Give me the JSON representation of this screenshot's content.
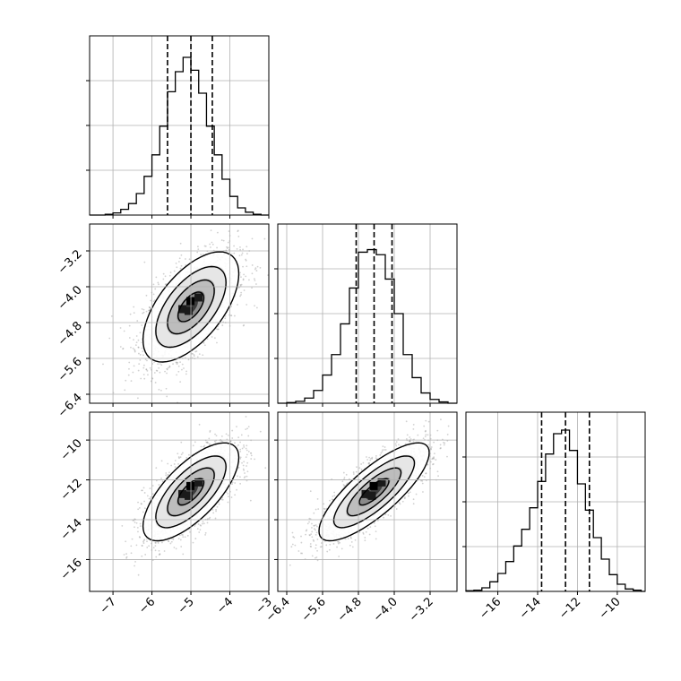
{
  "chart_data": {
    "type": "corner",
    "grid": true,
    "colors": {
      "line": "#000000",
      "grid": "#b0b0b0",
      "scatter": "#9a9a9a"
    },
    "parameters": [
      {
        "range": [
          -7.6,
          -3.0
        ],
        "ticks": [
          -7,
          -6,
          -5,
          -4,
          -3
        ],
        "tick_labels": [
          "−7",
          "−6",
          "−5",
          "−4",
          "−3"
        ],
        "quantiles": [
          -5.6,
          -5.0,
          -4.45
        ]
      },
      {
        "range": [
          -6.6,
          -2.6
        ],
        "ticks": [
          -6.4,
          -5.6,
          -4.8,
          -4.0,
          -3.2
        ],
        "tick_labels": [
          "−6.4",
          "−5.6",
          "−4.8",
          "−4.0",
          "−3.2"
        ],
        "quantiles": [
          -4.85,
          -4.45,
          -4.05
        ]
      },
      {
        "range": [
          -17.6,
          -8.6
        ],
        "ticks": [
          -16,
          -14,
          -12,
          -10
        ],
        "tick_labels": [
          "−16",
          "−14",
          "−12",
          "−10"
        ],
        "quantiles": [
          -13.8,
          -12.6,
          -11.4
        ]
      }
    ],
    "histograms": [
      {
        "param": 0,
        "bin_edges": [
          -7.6,
          -7.4,
          -7.2,
          -7.0,
          -6.8,
          -6.6,
          -6.4,
          -6.2,
          -6.0,
          -5.8,
          -5.6,
          -5.4,
          -5.2,
          -5.0,
          -4.8,
          -4.6,
          -4.4,
          -4.2,
          -4.0,
          -3.8,
          -3.6,
          -3.4,
          -3.2,
          -3.0
        ],
        "counts": [
          0,
          0,
          0.5,
          1.5,
          4,
          8,
          15,
          27,
          42,
          62,
          86,
          100,
          110,
          101,
          85,
          62,
          42,
          25,
          13,
          5,
          2,
          0.5,
          0
        ],
        "ylim": [
          0,
          125
        ]
      },
      {
        "param": 1,
        "bin_edges": [
          -6.6,
          -6.4,
          -6.2,
          -6.0,
          -5.8,
          -5.6,
          -5.4,
          -5.2,
          -5.0,
          -4.8,
          -4.6,
          -4.4,
          -4.2,
          -4.0,
          -3.8,
          -3.6,
          -3.4,
          -3.2,
          -3.0,
          -2.8,
          -2.6
        ],
        "counts": [
          0,
          0.5,
          1.5,
          4,
          10,
          22,
          38,
          62,
          90,
          118,
          120,
          116,
          97,
          70,
          38,
          20,
          8,
          3,
          1,
          0
        ],
        "ylim": [
          0,
          140
        ]
      },
      {
        "param": 2,
        "bin_edges": [
          -17.6,
          -17.2,
          -16.8,
          -16.4,
          -16.0,
          -15.6,
          -15.2,
          -14.8,
          -14.4,
          -14.0,
          -13.6,
          -13.2,
          -12.8,
          -12.4,
          -12.0,
          -11.6,
          -11.2,
          -10.8,
          -10.4,
          -10.0,
          -9.6,
          -9.2,
          -8.8,
          -8.6
        ],
        "counts": [
          0.5,
          1,
          3,
          8,
          15,
          25,
          38,
          52,
          70,
          92,
          115,
          132,
          135,
          118,
          90,
          68,
          45,
          27,
          14,
          6,
          2,
          1,
          0
        ],
        "ylim": [
          0,
          150
        ]
      }
    ],
    "density_panels": [
      {
        "x_param": 0,
        "y_param": 1,
        "center": [
          -5.0,
          -4.45
        ],
        "sigma": [
          0.6,
          0.6
        ],
        "rho": 0.6
      },
      {
        "x_param": 0,
        "y_param": 2,
        "center": [
          -5.0,
          -12.6
        ],
        "sigma": [
          0.6,
          1.2
        ],
        "rho": 0.7
      },
      {
        "x_param": 1,
        "y_param": 2,
        "center": [
          -4.45,
          -12.6
        ],
        "sigma": [
          0.6,
          1.2
        ],
        "rho": 0.8
      }
    ]
  }
}
